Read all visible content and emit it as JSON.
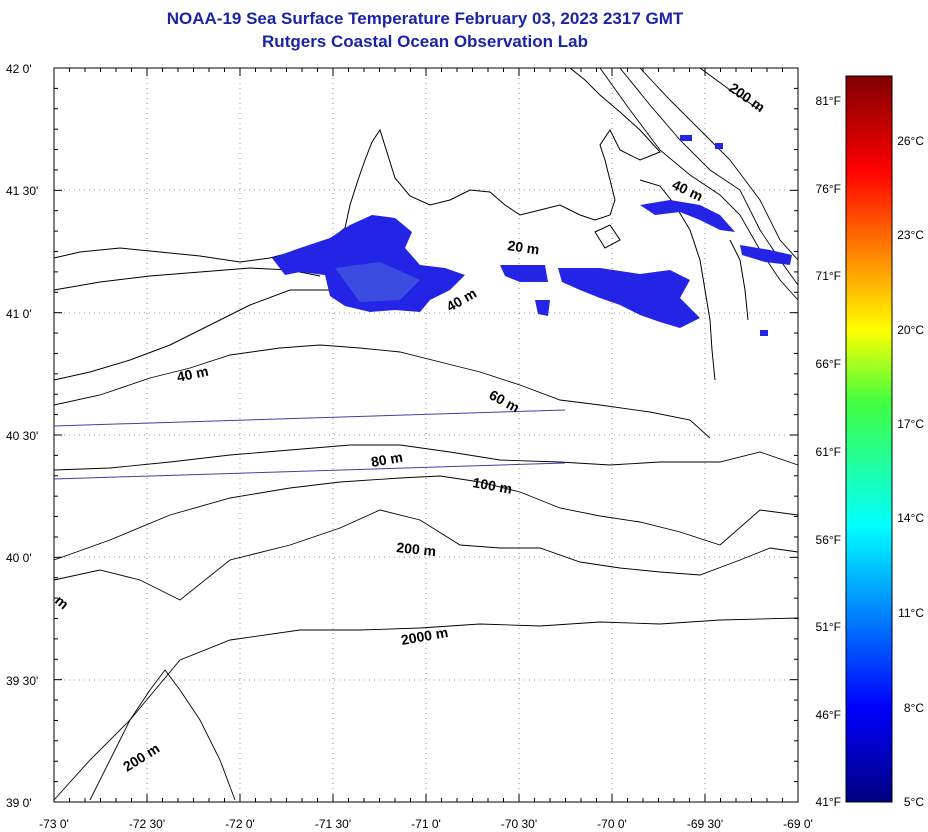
{
  "title": "NOAA-19 Sea Surface Temperature February 03, 2023 2317 GMT",
  "subtitle": "Rutgers Coastal Ocean Observation Lab",
  "axes": {
    "lat_labels": [
      "42 0'",
      "41 30'",
      "41 0'",
      "40 30'",
      "40 0'",
      "39 30'",
      "39 0'"
    ],
    "lon_labels": [
      "-73 0'",
      "-72 30'",
      "-72 0'",
      "-71 30'",
      "-71 0'",
      "-70 30'",
      "-70 0'",
      "-69 30'",
      "-69 0'"
    ]
  },
  "isobaths": [
    "200 m",
    "40 m",
    "20 m",
    "40 m",
    "40 m",
    "60 m",
    "80 m",
    "100 m",
    "200 m",
    "2000 m",
    "200 m",
    "m"
  ],
  "colorbar": {
    "min_c": 5,
    "max_c": 28,
    "fahrenheit": [
      "81°F",
      "76°F",
      "71°F",
      "66°F",
      "61°F",
      "56°F",
      "51°F",
      "46°F",
      "41°F"
    ],
    "celsius": [
      "26°C",
      "23°C",
      "20°C",
      "17°C",
      "14°C",
      "11°C",
      "8°C",
      "5°C"
    ]
  },
  "colors": {
    "title": "#1a24a8",
    "sst_patch": "#2424e6",
    "track": "#3a40a8"
  }
}
